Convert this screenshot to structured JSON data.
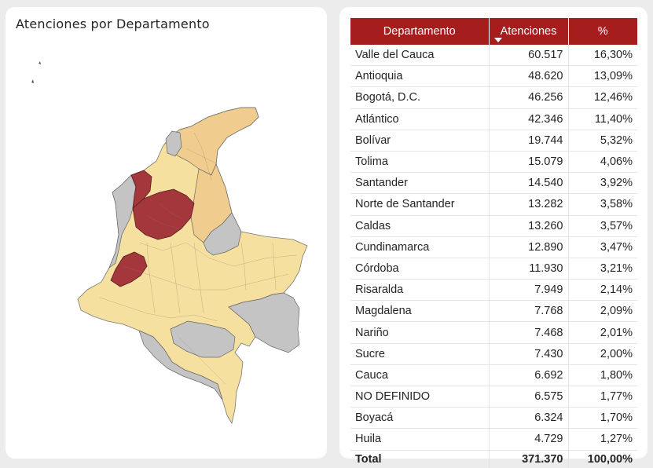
{
  "map_panel": {
    "title": "Atenciones por Departamento",
    "colors": {
      "high": "#a3373c",
      "mid": "#f0cd8e",
      "low": "#f6e0a0",
      "nodata": "#c4c4c4",
      "border": "#555555"
    }
  },
  "table": {
    "headers": [
      "Departamento",
      "Atenciones",
      "%"
    ],
    "sort_icon": "sort-descending-icon",
    "header_color": "#a51d1d",
    "rows": [
      {
        "dept": "Valle del Cauca",
        "count": "60.517",
        "pct": "16,30%"
      },
      {
        "dept": "Antioquia",
        "count": "48.620",
        "pct": "13,09%"
      },
      {
        "dept": "Bogotá, D.C.",
        "count": "46.256",
        "pct": "12,46%"
      },
      {
        "dept": "Atlántico",
        "count": "42.346",
        "pct": "11,40%"
      },
      {
        "dept": "Bolívar",
        "count": "19.744",
        "pct": "5,32%"
      },
      {
        "dept": "Tolima",
        "count": "15.079",
        "pct": "4,06%"
      },
      {
        "dept": "Santander",
        "count": "14.540",
        "pct": "3,92%"
      },
      {
        "dept": "Norte de Santander",
        "count": "13.282",
        "pct": "3,58%"
      },
      {
        "dept": "Caldas",
        "count": "13.260",
        "pct": "3,57%"
      },
      {
        "dept": "Cundinamarca",
        "count": "12.890",
        "pct": "3,47%"
      },
      {
        "dept": "Córdoba",
        "count": "11.930",
        "pct": "3,21%"
      },
      {
        "dept": "Risaralda",
        "count": "7.949",
        "pct": "2,14%"
      },
      {
        "dept": "Magdalena",
        "count": "7.768",
        "pct": "2,09%"
      },
      {
        "dept": "Nariño",
        "count": "7.468",
        "pct": "2,01%"
      },
      {
        "dept": "Sucre",
        "count": "7.430",
        "pct": "2,00%"
      },
      {
        "dept": "Cauca",
        "count": "6.692",
        "pct": "1,80%"
      },
      {
        "dept": "NO DEFINIDO",
        "count": "6.575",
        "pct": "1,77%"
      },
      {
        "dept": "Boyacá",
        "count": "6.324",
        "pct": "1,70%"
      },
      {
        "dept": "Huila",
        "count": "4.729",
        "pct": "1,27%"
      }
    ],
    "total": {
      "label": "Total",
      "count": "371.370",
      "pct": "100,00%"
    }
  }
}
